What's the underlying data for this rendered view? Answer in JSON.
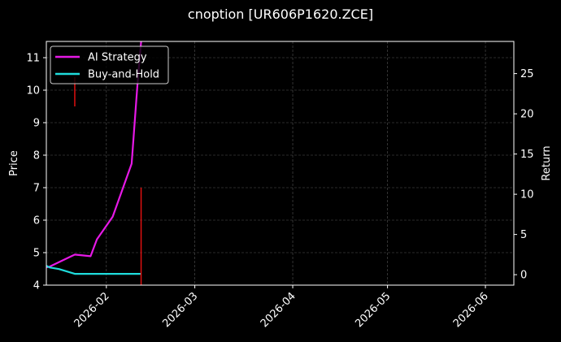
{
  "chart_data": {
    "type": "line",
    "title": "cnoption [UR606P1620.ZCE]",
    "xlabel": "",
    "ylabel": "Price",
    "y2label": "Return",
    "xlim": [
      "2026-01-13",
      "2026-06-10"
    ],
    "ylim": [
      4,
      11.5
    ],
    "y2lim": [
      -1.3,
      29
    ],
    "x_ticks": [
      "2026-02",
      "2026-03",
      "2026-04",
      "2026-05",
      "2026-06"
    ],
    "y_ticks": [
      4,
      5,
      6,
      7,
      8,
      9,
      10,
      11
    ],
    "y2_ticks": [
      0,
      5,
      10,
      15,
      20,
      25
    ],
    "grid": true,
    "legend_position": "top-left",
    "series": [
      {
        "name": "AI Strategy",
        "axis": "right",
        "color": "#e619e6",
        "points": [
          {
            "x": "2026-01-13",
            "y": 0.9
          },
          {
            "x": "2026-01-14",
            "y": 1.0
          },
          {
            "x": "2026-01-22",
            "y": 2.5
          },
          {
            "x": "2026-01-27",
            "y": 2.3
          },
          {
            "x": "2026-01-29",
            "y": 4.4
          },
          {
            "x": "2026-02-03",
            "y": 7.2
          },
          {
            "x": "2026-02-09",
            "y": 13.8
          },
          {
            "x": "2026-02-11",
            "y": 24.5
          },
          {
            "x": "2026-02-12",
            "y": 29.0
          }
        ]
      },
      {
        "name": "Buy-and-Hold",
        "axis": "right",
        "color": "#1fdcdc",
        "points": [
          {
            "x": "2026-01-13",
            "y": 1.1
          },
          {
            "x": "2026-01-14",
            "y": 0.9
          },
          {
            "x": "2026-01-17",
            "y": 0.7
          },
          {
            "x": "2026-01-22",
            "y": 0.1
          },
          {
            "x": "2026-01-29",
            "y": 0.1
          },
          {
            "x": "2026-02-12",
            "y": 0.1
          }
        ]
      }
    ],
    "markers": [
      {
        "x": "2026-01-22",
        "y_low": 9.5,
        "y_high": 10.4,
        "color": "#e01010"
      },
      {
        "x": "2026-02-12",
        "y_low": 4.0,
        "y_high": 7.0,
        "color": "#e01010"
      }
    ]
  }
}
